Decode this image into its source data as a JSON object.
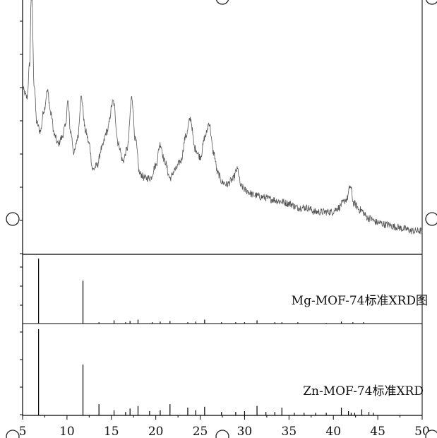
{
  "chart_data": [
    {
      "type": "line",
      "panel": "top",
      "title": "",
      "xlabel": "",
      "ylabel": "",
      "xlim": [
        5,
        50
      ],
      "series": [
        {
          "x": [
            5,
            5.5,
            5.8,
            6.0,
            6.3,
            6.6,
            7.0,
            7.4,
            7.8,
            8.2,
            8.6,
            9.0,
            9.4,
            9.8,
            10.1,
            10.4,
            10.8,
            11.2,
            11.6,
            12.1,
            12.5,
            12.9,
            13.4,
            13.9,
            14.5,
            15.2,
            15.8,
            16.3,
            16.8,
            17.3,
            17.7,
            18.2,
            18.8,
            19.4,
            20.0,
            20.5,
            21.0,
            21.6,
            22.2,
            22.8,
            23.4,
            23.9,
            24.4,
            25.0,
            25.6,
            26.0,
            26.5,
            27.0,
            27.5,
            28.0,
            28.6,
            29.2,
            29.6,
            30.2,
            31.0,
            32.0,
            33.0,
            34.0,
            35.0,
            36.0,
            37.0,
            38.0,
            39.0,
            39.8,
            40.6,
            41.0,
            41.5,
            41.9,
            42.3,
            43.0,
            44.0,
            45.0,
            46.0,
            47.0,
            48.0,
            49.0,
            50.0
          ],
          "y": [
            0.78,
            0.74,
            0.9,
            1.3,
            0.8,
            0.62,
            0.58,
            0.68,
            0.77,
            0.66,
            0.56,
            0.52,
            0.55,
            0.6,
            0.72,
            0.58,
            0.48,
            0.55,
            0.74,
            0.58,
            0.52,
            0.4,
            0.42,
            0.5,
            0.58,
            0.72,
            0.52,
            0.44,
            0.5,
            0.74,
            0.54,
            0.38,
            0.36,
            0.36,
            0.42,
            0.52,
            0.44,
            0.36,
            0.4,
            0.44,
            0.56,
            0.64,
            0.5,
            0.46,
            0.56,
            0.62,
            0.48,
            0.38,
            0.34,
            0.33,
            0.35,
            0.4,
            0.32,
            0.3,
            0.28,
            0.27,
            0.26,
            0.25,
            0.24,
            0.22,
            0.22,
            0.2,
            0.2,
            0.2,
            0.22,
            0.24,
            0.26,
            0.32,
            0.24,
            0.21,
            0.17,
            0.15,
            0.14,
            0.13,
            0.12,
            0.11,
            0.11
          ]
        }
      ]
    },
    {
      "type": "bar",
      "panel": "middle",
      "label": "Mg-MOF-74标准XRD图",
      "xlim": [
        5,
        50
      ],
      "x": [
        6.8,
        11.8,
        13.6,
        15.3,
        16.6,
        17.1,
        18.0,
        19.6,
        20.5,
        21.6,
        23.6,
        24.5,
        25.5,
        27.4,
        29.0,
        30.0,
        31.4,
        33.4,
        34.2,
        36.0,
        39.2,
        40.9,
        42.2,
        43.4
      ],
      "values": [
        1.0,
        0.66,
        0.02,
        0.05,
        0.02,
        0.04,
        0.06,
        0.02,
        0.03,
        0.04,
        0.02,
        0.03,
        0.06,
        0.02,
        0.02,
        0.02,
        0.05,
        0.02,
        0.02,
        0.02,
        0.01,
        0.03,
        0.02,
        0.02
      ]
    },
    {
      "type": "bar",
      "panel": "bottom",
      "label": "Zn-MOF-74标准XRD",
      "xlim": [
        5,
        50
      ],
      "xticks": [
        5,
        10,
        15,
        20,
        25,
        30,
        35,
        40,
        45,
        50
      ],
      "x": [
        6.8,
        11.8,
        13.6,
        15.3,
        16.6,
        17.1,
        18.0,
        19.3,
        20.5,
        21.6,
        23.6,
        24.5,
        25.5,
        27.4,
        29.0,
        30.0,
        31.4,
        32.4,
        33.4,
        34.2,
        35.6,
        36.7,
        38.0,
        39.2,
        40.9,
        41.7,
        42.0,
        42.4,
        43.2,
        44.0,
        44.5
      ],
      "values": [
        1.0,
        0.59,
        0.13,
        0.06,
        0.04,
        0.08,
        0.11,
        0.05,
        0.06,
        0.13,
        0.09,
        0.06,
        0.1,
        0.04,
        0.04,
        0.05,
        0.11,
        0.04,
        0.04,
        0.09,
        0.03,
        0.03,
        0.03,
        0.03,
        0.09,
        0.05,
        0.03,
        0.03,
        0.07,
        0.04,
        0.03
      ]
    }
  ]
}
